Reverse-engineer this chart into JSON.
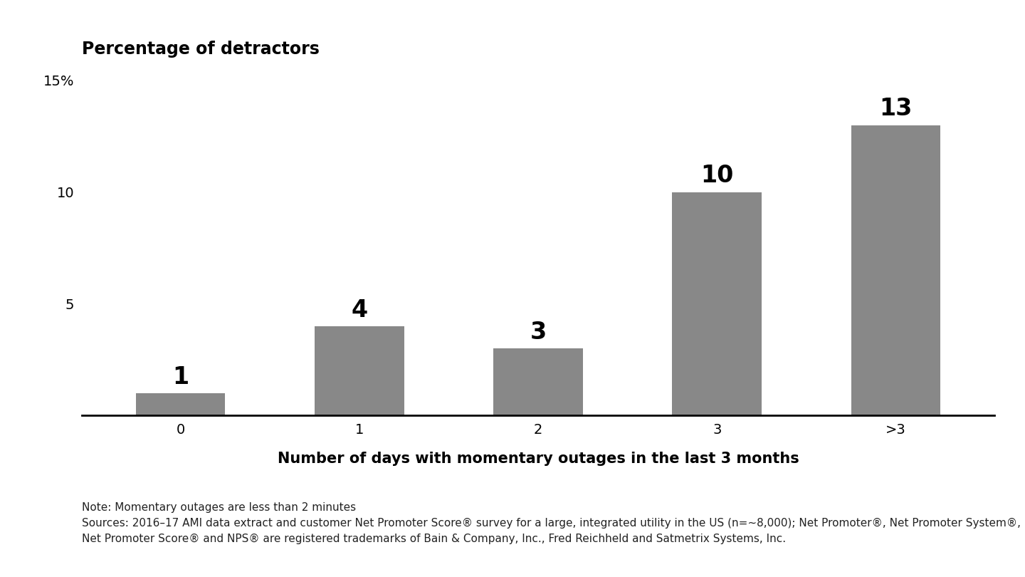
{
  "categories": [
    "0",
    "1",
    "2",
    "3",
    ">3"
  ],
  "values": [
    1,
    4,
    3,
    10,
    13
  ],
  "bar_color": "#888888",
  "title": "Percentage of detractors",
  "xlabel": "Number of days with momentary outages in the last 3 months",
  "ylim": [
    0,
    15.5
  ],
  "yticks": [
    0,
    5,
    10,
    15
  ],
  "ytick_labels": [
    "",
    "5",
    "10",
    "15%"
  ],
  "bar_label_fontsize": 24,
  "bar_label_fontweight": "bold",
  "title_fontsize": 17,
  "title_fontweight": "bold",
  "xlabel_fontsize": 15,
  "xlabel_fontweight": "bold",
  "tick_fontsize": 14,
  "note_line1": "Note: Momentary outages are less than 2 minutes",
  "note_line2": "Sources: 2016–17 AMI data extract and customer Net Promoter Score® survey for a large, integrated utility in the US (n=~8,000); Net Promoter®, Net Promoter System®,",
  "note_line3": "Net Promoter Score® and NPS® are registered trademarks of Bain & Company, Inc., Fred Reichheld and Satmetrix Systems, Inc.",
  "note_fontsize": 11,
  "background_color": "#ffffff"
}
